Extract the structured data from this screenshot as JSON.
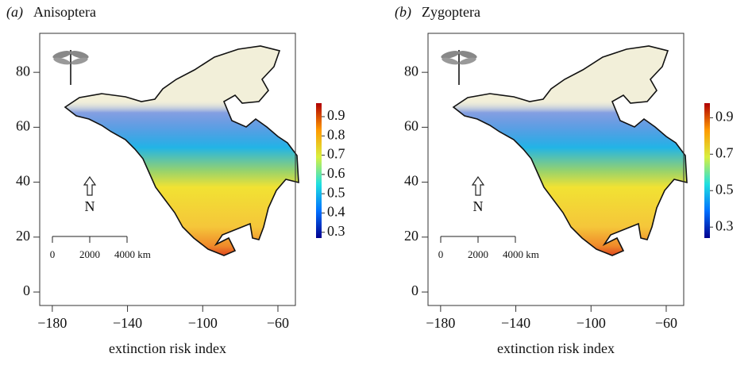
{
  "panels": [
    {
      "label": "(a)",
      "title": "Anisoptera",
      "x_axis_label": "extinction risk index",
      "xlim": [
        -186.7,
        -50.7
      ],
      "ylim": [
        -4.9,
        94.2
      ],
      "xticks": [
        {
          "value": -180,
          "label": "−180"
        },
        {
          "value": -140,
          "label": "−140"
        },
        {
          "value": -100,
          "label": "−100"
        },
        {
          "value": -60,
          "label": "−60"
        }
      ],
      "yticks": [
        0,
        20,
        40,
        60,
        80
      ],
      "colorbar": {
        "lim": [
          0.27,
          0.97
        ],
        "ticks": [
          0.3,
          0.4,
          0.5,
          0.6,
          0.7,
          0.8,
          0.9
        ]
      },
      "north": "N",
      "scale_bar": {
        "ticks": [
          0,
          2000,
          {
            "value": 4000,
            "label": "4000 km"
          }
        ]
      }
    },
    {
      "label": "(b)",
      "title": "Zygoptera",
      "x_axis_label": "extinction risk index",
      "xlim": [
        -186.7,
        -50.7
      ],
      "ylim": [
        -4.9,
        94.2
      ],
      "xticks": [
        {
          "value": -180,
          "label": "−180"
        },
        {
          "value": -140,
          "label": "−140"
        },
        {
          "value": -100,
          "label": "−100"
        },
        {
          "value": -60,
          "label": "−60"
        }
      ],
      "yticks": [
        0,
        20,
        40,
        60,
        80
      ],
      "colorbar": {
        "lim": [
          0.24,
          0.98
        ],
        "ticks": [
          0.3,
          0.5,
          0.7,
          0.9
        ]
      },
      "north": "N",
      "scale_bar": {
        "ticks": [
          0,
          2000,
          {
            "value": 4000,
            "label": "4000 km"
          }
        ]
      }
    }
  ]
}
